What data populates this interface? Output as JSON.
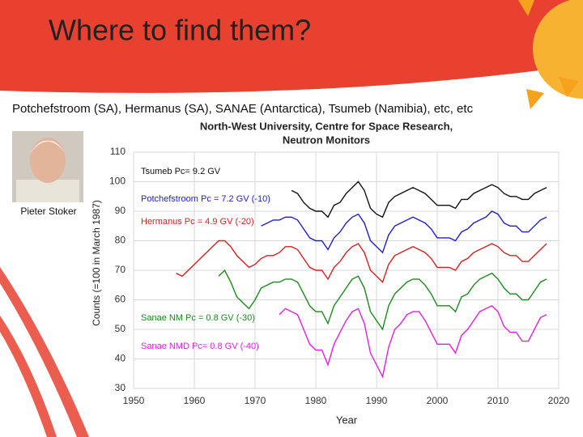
{
  "slide_title": "Where to find them?",
  "stations": "Potchefstroom (SA), Hermanus (SA), SANAE (Antarctica), Tsumeb (Namibia), etc, etc",
  "photo_caption": "Pieter Stoker",
  "chart_data": {
    "type": "line",
    "title": "North-West University, Centre for Space Research,",
    "subtitle": "Neutron Monitors",
    "x_label": "Year",
    "y_label": "Counts (=100 in March 1987)",
    "xlim": [
      1950,
      2020
    ],
    "xticks": [
      1950,
      1960,
      1970,
      1980,
      1990,
      2000,
      2010,
      2020
    ],
    "ylim": [
      30,
      110
    ],
    "yticks": [
      30,
      40,
      50,
      60,
      70,
      80,
      90,
      100,
      110
    ],
    "grid": true,
    "x": [
      1957,
      1958,
      1959,
      1960,
      1961,
      1962,
      1963,
      1964,
      1965,
      1966,
      1967,
      1968,
      1969,
      1970,
      1971,
      1972,
      1973,
      1974,
      1975,
      1976,
      1977,
      1978,
      1979,
      1980,
      1981,
      1982,
      1983,
      1984,
      1985,
      1986,
      1987,
      1988,
      1989,
      1990,
      1991,
      1992,
      1993,
      1994,
      1995,
      1996,
      1997,
      1998,
      1999,
      2000,
      2001,
      2002,
      2003,
      2004,
      2005,
      2006,
      2007,
      2008,
      2009,
      2010,
      2011,
      2012,
      2013,
      2014,
      2015,
      2016,
      2017,
      2018
    ],
    "series": [
      {
        "name": "Tsumeb Pc= 9.2 GV",
        "color": "#111111",
        "values": [
          null,
          null,
          null,
          null,
          null,
          null,
          null,
          null,
          null,
          null,
          null,
          null,
          null,
          null,
          null,
          null,
          null,
          null,
          null,
          97,
          96,
          93,
          91,
          90,
          90,
          88,
          92,
          93,
          96,
          98,
          100,
          97,
          91,
          89,
          88,
          93,
          95,
          96,
          97,
          98,
          97,
          96,
          94,
          92,
          92,
          92,
          91,
          94,
          94,
          96,
          97,
          98,
          99,
          98,
          96,
          95,
          95,
          94,
          94,
          96,
          97,
          98
        ]
      },
      {
        "name": "Potchefstroom Pc = 7.2 GV (-10)",
        "color": "#1f1fc8",
        "values": [
          null,
          null,
          null,
          null,
          null,
          null,
          null,
          null,
          null,
          null,
          null,
          null,
          null,
          null,
          85,
          86,
          87,
          87,
          88,
          88,
          87,
          84,
          81,
          80,
          80,
          77,
          81,
          83,
          86,
          88,
          89,
          86,
          80,
          78,
          76,
          82,
          85,
          86,
          87,
          88,
          87,
          86,
          84,
          81,
          81,
          81,
          80,
          83,
          84,
          86,
          87,
          88,
          90,
          89,
          86,
          85,
          85,
          83,
          83,
          85,
          87,
          88
        ]
      },
      {
        "name": "Hermanus Pc = 4.9 GV (-20)",
        "color": "#d42020",
        "values": [
          69,
          68,
          70,
          72,
          74,
          76,
          78,
          80,
          80,
          78,
          75,
          73,
          71,
          72,
          74,
          75,
          75,
          76,
          78,
          78,
          77,
          74,
          71,
          70,
          70,
          67,
          71,
          73,
          76,
          78,
          79,
          76,
          70,
          68,
          66,
          72,
          75,
          76,
          77,
          78,
          77,
          76,
          74,
          71,
          71,
          71,
          70,
          73,
          74,
          76,
          77,
          78,
          79,
          78,
          76,
          75,
          75,
          73,
          73,
          75,
          77,
          79
        ]
      },
      {
        "name": "Sanae NM Pc = 0.8 GV (-30)",
        "color": "#1a8a1a",
        "values": [
          null,
          null,
          null,
          null,
          null,
          null,
          null,
          68,
          70,
          66,
          61,
          59,
          57,
          60,
          64,
          65,
          66,
          66,
          67,
          67,
          66,
          62,
          58,
          56,
          56,
          52,
          58,
          61,
          64,
          67,
          68,
          64,
          56,
          53,
          50,
          58,
          62,
          64,
          66,
          67,
          67,
          65,
          62,
          58,
          58,
          58,
          56,
          61,
          62,
          65,
          67,
          68,
          69,
          67,
          64,
          62,
          62,
          60,
          60,
          63,
          66,
          67
        ]
      },
      {
        "name": "Sanae NMD Pc= 0.8 GV (-40)",
        "color": "#e020e0",
        "values": [
          null,
          null,
          null,
          null,
          null,
          null,
          null,
          null,
          null,
          null,
          null,
          null,
          null,
          null,
          null,
          null,
          null,
          55,
          57,
          56,
          55,
          50,
          45,
          43,
          43,
          38,
          45,
          49,
          53,
          56,
          57,
          52,
          42,
          38,
          34,
          44,
          50,
          52,
          55,
          56,
          56,
          53,
          49,
          45,
          45,
          45,
          42,
          48,
          50,
          53,
          56,
          57,
          58,
          56,
          51,
          49,
          49,
          46,
          46,
          50,
          54,
          55
        ]
      }
    ]
  }
}
